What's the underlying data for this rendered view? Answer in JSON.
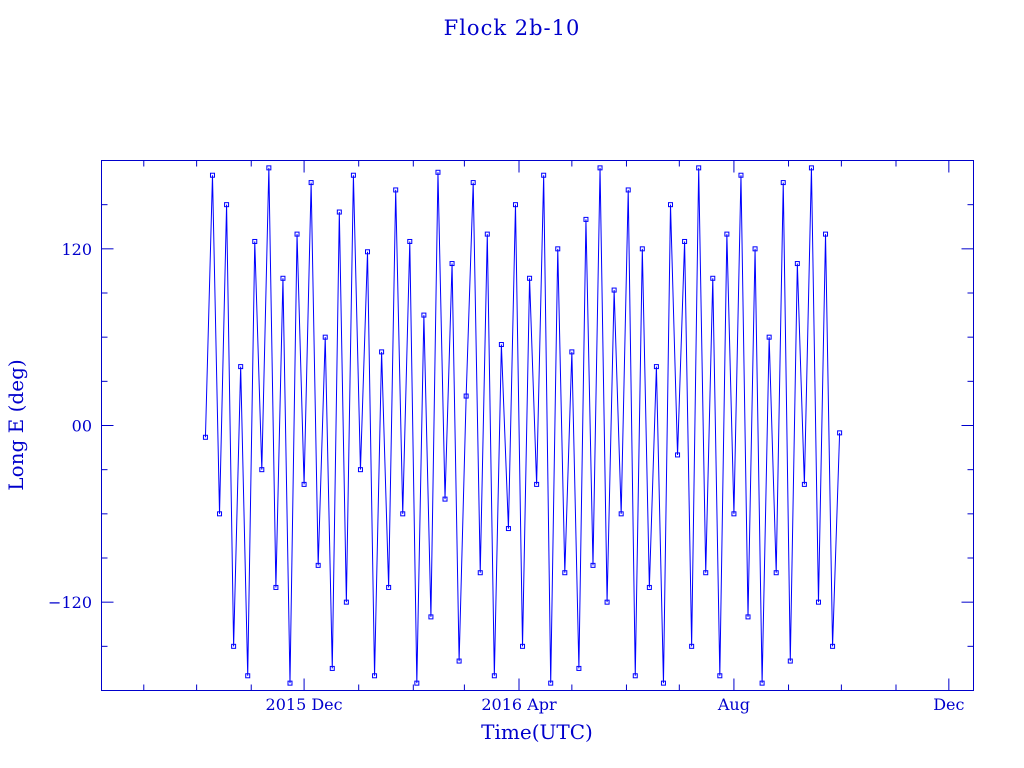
{
  "chart_data": {
    "type": "line",
    "title": "Flock 2b-10",
    "xlabel": "Time(UTC)",
    "ylabel": "Long E (deg)",
    "xlim": [
      "2015-08-08",
      "2016-12-15"
    ],
    "ylim": [
      -180,
      180
    ],
    "x_ticks": [
      {
        "date": "2015-12-01",
        "label": "2015 Dec"
      },
      {
        "date": "2016-04-01",
        "label": "2016 Apr"
      },
      {
        "date": "2016-08-01",
        "label": "Aug"
      },
      {
        "date": "2016-12-01",
        "label": "Dec"
      }
    ],
    "x_minor_months": [
      "2015-09-01",
      "2015-10-01",
      "2015-11-01",
      "2016-01-01",
      "2016-02-01",
      "2016-03-01",
      "2016-05-01",
      "2016-06-01",
      "2016-07-01",
      "2016-09-01",
      "2016-10-01",
      "2016-11-01"
    ],
    "y_ticks": [
      {
        "value": 120,
        "label": "120"
      },
      {
        "value": 0,
        "label": "00"
      },
      {
        "value": -120,
        "label": "−120"
      }
    ],
    "y_minor_step": 30,
    "grid": false,
    "marker": "square",
    "color": "#0000ff",
    "points": [
      [
        "2015-10-06",
        -8
      ],
      [
        "2015-10-10",
        170
      ],
      [
        "2015-10-14",
        -60
      ],
      [
        "2015-10-18",
        150
      ],
      [
        "2015-10-22",
        -150
      ],
      [
        "2015-10-26",
        40
      ],
      [
        "2015-10-30",
        -170
      ],
      [
        "2015-11-03",
        125
      ],
      [
        "2015-11-07",
        -30
      ],
      [
        "2015-11-11",
        175
      ],
      [
        "2015-11-15",
        -110
      ],
      [
        "2015-11-19",
        100
      ],
      [
        "2015-11-23",
        -175
      ],
      [
        "2015-11-27",
        130
      ],
      [
        "2015-12-01",
        -40
      ],
      [
        "2015-12-05",
        165
      ],
      [
        "2015-12-09",
        -95
      ],
      [
        "2015-12-13",
        60
      ],
      [
        "2015-12-17",
        -165
      ],
      [
        "2015-12-21",
        145
      ],
      [
        "2015-12-25",
        -120
      ],
      [
        "2015-12-29",
        170
      ],
      [
        "2016-01-02",
        -30
      ],
      [
        "2016-01-06",
        118
      ],
      [
        "2016-01-10",
        -170
      ],
      [
        "2016-01-14",
        50
      ],
      [
        "2016-01-18",
        -110
      ],
      [
        "2016-01-22",
        160
      ],
      [
        "2016-01-26",
        -60
      ],
      [
        "2016-01-30",
        125
      ],
      [
        "2016-02-03",
        -175
      ],
      [
        "2016-02-07",
        75
      ],
      [
        "2016-02-11",
        -130
      ],
      [
        "2016-02-15",
        172
      ],
      [
        "2016-02-19",
        -50
      ],
      [
        "2016-02-23",
        110
      ],
      [
        "2016-02-27",
        -160
      ],
      [
        "2016-03-02",
        20
      ],
      [
        "2016-03-06",
        165
      ],
      [
        "2016-03-10",
        -100
      ],
      [
        "2016-03-14",
        130
      ],
      [
        "2016-03-18",
        -170
      ],
      [
        "2016-03-22",
        55
      ],
      [
        "2016-03-26",
        -70
      ],
      [
        "2016-03-30",
        150
      ],
      [
        "2016-04-03",
        -150
      ],
      [
        "2016-04-07",
        100
      ],
      [
        "2016-04-11",
        -40
      ],
      [
        "2016-04-15",
        170
      ],
      [
        "2016-04-19",
        -175
      ],
      [
        "2016-04-23",
        120
      ],
      [
        "2016-04-27",
        -100
      ],
      [
        "2016-05-01",
        50
      ],
      [
        "2016-05-05",
        -165
      ],
      [
        "2016-05-09",
        140
      ],
      [
        "2016-05-13",
        -95
      ],
      [
        "2016-05-17",
        175
      ],
      [
        "2016-05-21",
        -120
      ],
      [
        "2016-05-25",
        92
      ],
      [
        "2016-05-29",
        -60
      ],
      [
        "2016-06-02",
        160
      ],
      [
        "2016-06-06",
        -170
      ],
      [
        "2016-06-10",
        120
      ],
      [
        "2016-06-14",
        -110
      ],
      [
        "2016-06-18",
        40
      ],
      [
        "2016-06-22",
        -175
      ],
      [
        "2016-06-26",
        150
      ],
      [
        "2016-06-30",
        -20
      ],
      [
        "2016-07-04",
        125
      ],
      [
        "2016-07-08",
        -150
      ],
      [
        "2016-07-12",
        175
      ],
      [
        "2016-07-16",
        -100
      ],
      [
        "2016-07-20",
        100
      ],
      [
        "2016-07-24",
        -170
      ],
      [
        "2016-07-28",
        130
      ],
      [
        "2016-08-01",
        -60
      ],
      [
        "2016-08-05",
        170
      ],
      [
        "2016-08-09",
        -130
      ],
      [
        "2016-08-13",
        120
      ],
      [
        "2016-08-17",
        -175
      ],
      [
        "2016-08-21",
        60
      ],
      [
        "2016-08-25",
        -100
      ],
      [
        "2016-08-29",
        165
      ],
      [
        "2016-09-02",
        -160
      ],
      [
        "2016-09-06",
        110
      ],
      [
        "2016-09-10",
        -40
      ],
      [
        "2016-09-14",
        175
      ],
      [
        "2016-09-18",
        -120
      ],
      [
        "2016-09-22",
        130
      ],
      [
        "2016-09-26",
        -150
      ],
      [
        "2016-09-30",
        -5
      ]
    ]
  }
}
